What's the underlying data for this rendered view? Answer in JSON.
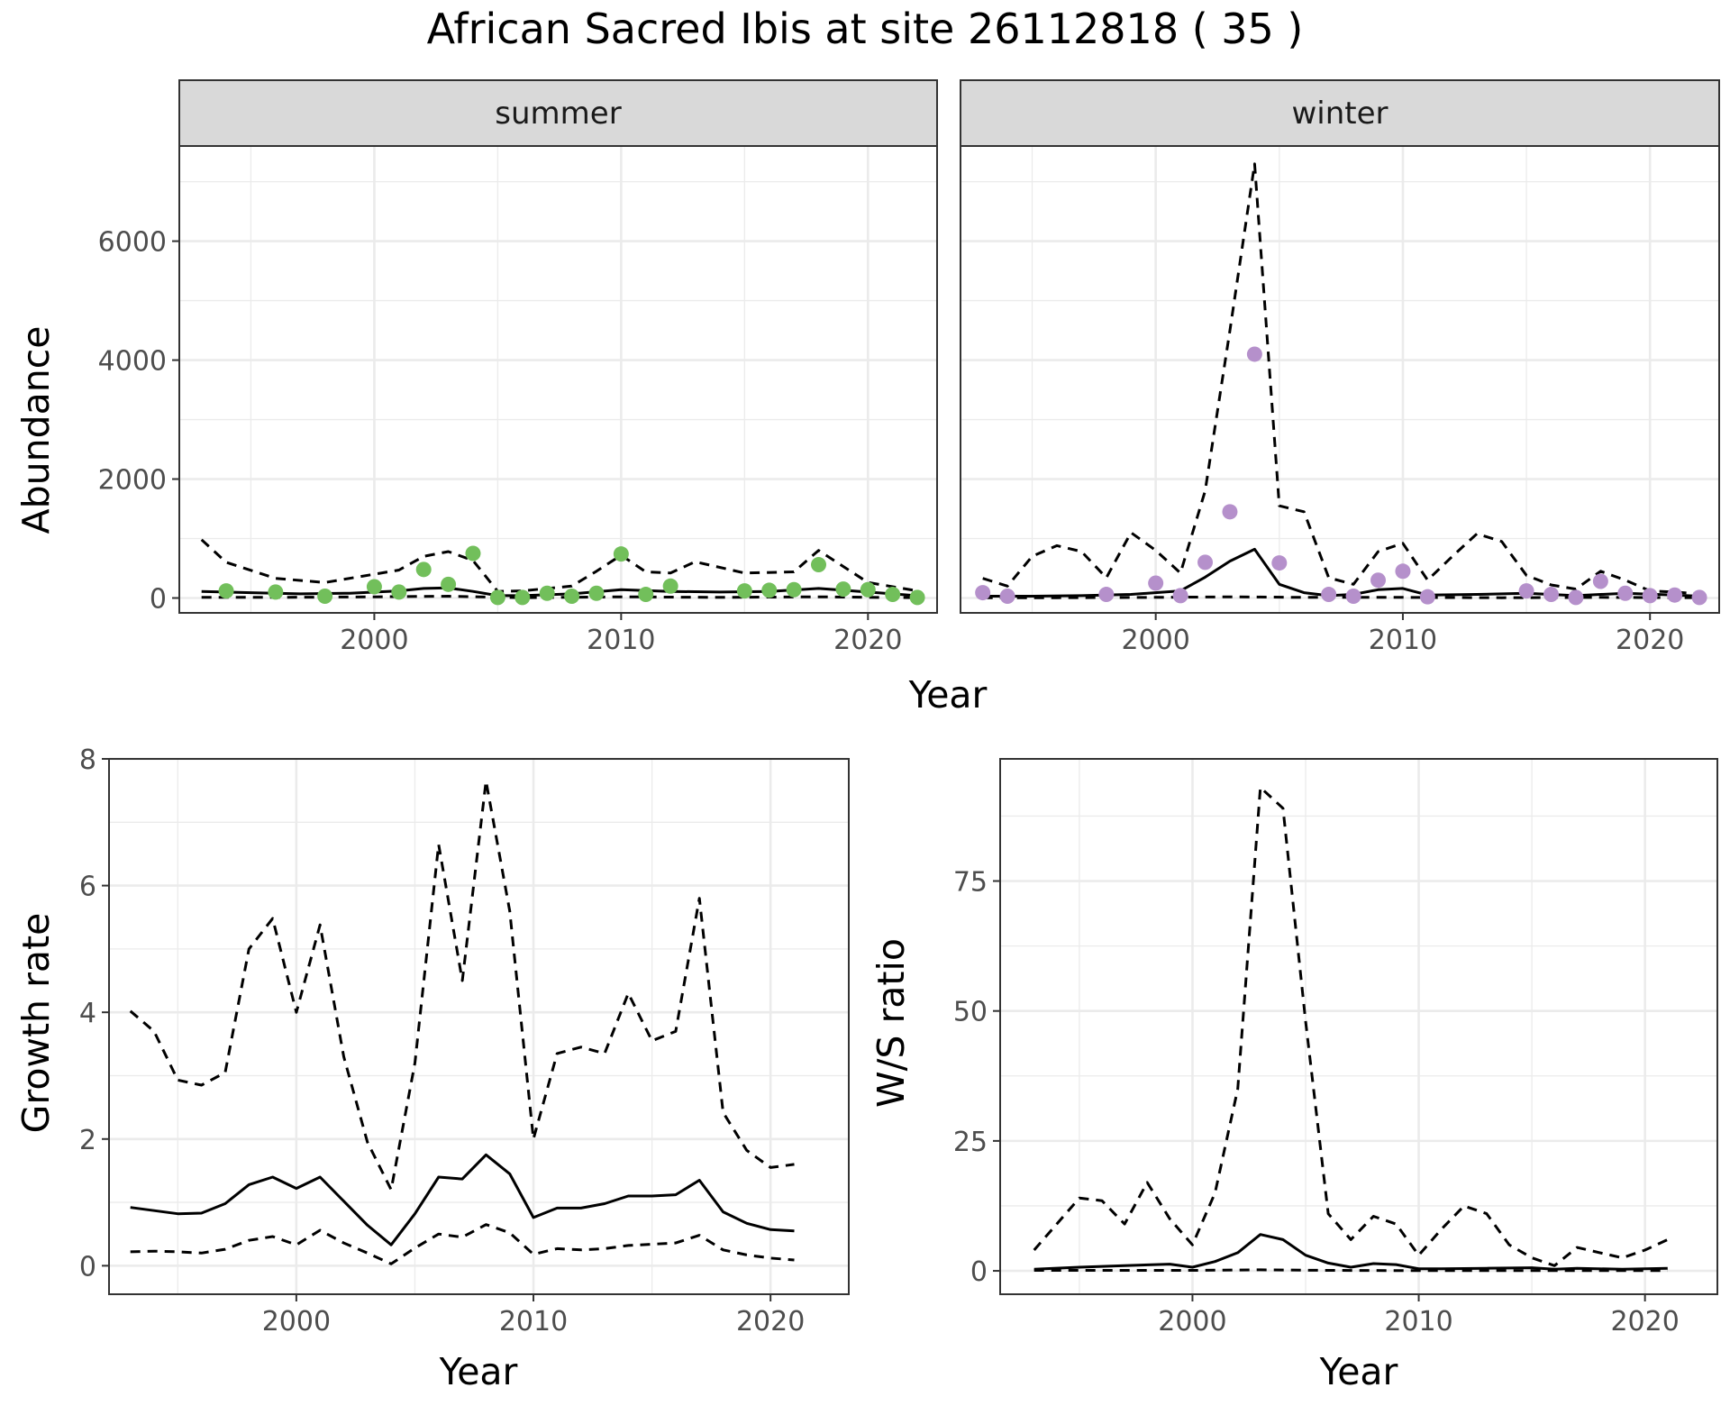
{
  "title": "African Sacred Ibis at site 26112818 ( 35 )",
  "chart_data": [
    {
      "type": "line",
      "facet": "summer",
      "ylabel": "Abundance",
      "xlabel": "Year",
      "xlim": [
        1992.1,
        2022.8
      ],
      "ylim": [
        -250,
        7600
      ],
      "xticks": [
        2000,
        2010,
        2020
      ],
      "yticks": [
        0,
        2000,
        4000,
        6000
      ],
      "grid": true,
      "points_color": "#72bf5b",
      "points": {
        "x": [
          1994,
          1996,
          1998,
          2000,
          2001,
          2002,
          2003,
          2004,
          2005,
          2006,
          2007,
          2008,
          2009,
          2010,
          2011,
          2012,
          2015,
          2016,
          2017,
          2018,
          2019,
          2020,
          2021,
          2022
        ],
        "y": [
          120,
          100,
          30,
          190,
          100,
          480,
          230,
          750,
          10,
          10,
          80,
          30,
          80,
          740,
          60,
          200,
          120,
          130,
          140,
          560,
          150,
          140,
          60,
          10
        ]
      },
      "series": [
        {
          "name": "",
          "style": "solid",
          "x": [
            1993,
            1995,
            1997,
            1999,
            2001,
            2002,
            2003,
            2004,
            2005,
            2006,
            2008,
            2010,
            2012,
            2014,
            2016,
            2018,
            2020,
            2022
          ],
          "y": [
            110,
            90,
            70,
            80,
            120,
            160,
            170,
            110,
            40,
            40,
            70,
            140,
            110,
            100,
            110,
            160,
            100,
            40
          ]
        },
        {
          "name": "",
          "style": "dashed",
          "x": [
            1993,
            1994,
            1996,
            1998,
            2000,
            2001,
            2002,
            2003,
            2004,
            2005,
            2006,
            2008,
            2009,
            2010,
            2011,
            2012,
            2013,
            2015,
            2017,
            2018,
            2020,
            2022
          ],
          "y": [
            980,
            600,
            330,
            260,
            400,
            470,
            700,
            780,
            630,
            110,
            120,
            200,
            450,
            720,
            440,
            420,
            610,
            420,
            440,
            800,
            260,
            120
          ]
        },
        {
          "name": "",
          "style": "dashed",
          "x": [
            1993,
            1996,
            2000,
            2003,
            2006,
            2010,
            2014,
            2018,
            2022
          ],
          "y": [
            10,
            10,
            20,
            30,
            5,
            20,
            10,
            20,
            5
          ]
        }
      ]
    },
    {
      "type": "line",
      "facet": "winter",
      "ylabel": "Abundance",
      "xlabel": "Year",
      "xlim": [
        1992.1,
        2022.8
      ],
      "ylim": [
        -250,
        7600
      ],
      "xticks": [
        2000,
        2010,
        2020
      ],
      "yticks": [
        0,
        2000,
        4000,
        6000
      ],
      "grid": true,
      "points_color": "#b590cb",
      "points": {
        "x": [
          1993,
          1994,
          1998,
          2000,
          2001,
          2002,
          2003,
          2004,
          2005,
          2007,
          2008,
          2009,
          2010,
          2011,
          2015,
          2016,
          2017,
          2018,
          2019,
          2020,
          2021,
          2022
        ],
        "y": [
          90,
          30,
          60,
          250,
          40,
          600,
          1450,
          4100,
          590,
          60,
          30,
          300,
          450,
          20,
          120,
          60,
          10,
          280,
          80,
          40,
          50,
          10
        ]
      },
      "series": [
        {
          "name": "",
          "style": "solid",
          "x": [
            1993,
            1995,
            1997,
            1999,
            2001,
            2002,
            2003,
            2004,
            2005,
            2006,
            2007,
            2008,
            2009,
            2010,
            2011,
            2013,
            2015,
            2017,
            2019,
            2021,
            2022
          ],
          "y": [
            30,
            30,
            40,
            60,
            120,
            350,
            620,
            820,
            230,
            90,
            40,
            60,
            140,
            160,
            50,
            60,
            80,
            40,
            80,
            50,
            30
          ]
        },
        {
          "name": "",
          "style": "dashed",
          "x": [
            1993,
            1994,
            1995,
            1996,
            1997,
            1998,
            1999,
            2000,
            2001,
            2002,
            2003,
            2004,
            2005,
            2006,
            2007,
            2008,
            2009,
            2010,
            2011,
            2012,
            2013,
            2014,
            2015,
            2016,
            2017,
            2018,
            2019,
            2020,
            2021,
            2022
          ],
          "y": [
            330,
            200,
            700,
            880,
            780,
            340,
            1100,
            800,
            420,
            1800,
            4500,
            7300,
            1550,
            1450,
            340,
            230,
            780,
            920,
            300,
            700,
            1080,
            950,
            380,
            220,
            150,
            450,
            300,
            120,
            100,
            70
          ]
        },
        {
          "name": "",
          "style": "dashed",
          "x": [
            1993,
            1996,
            2000,
            2003,
            2006,
            2010,
            2014,
            2018,
            2022
          ],
          "y": [
            5,
            5,
            10,
            20,
            10,
            10,
            5,
            10,
            5
          ]
        }
      ]
    },
    {
      "type": "line",
      "ylabel": "Growth rate",
      "xlabel": "Year",
      "xlim": [
        1992.1,
        2023.3
      ],
      "ylim": [
        -0.45,
        8.0
      ],
      "xticks": [
        2000,
        2010,
        2020
      ],
      "yticks": [
        0,
        2,
        4,
        6,
        8
      ],
      "grid": true,
      "series": [
        {
          "name": "",
          "style": "solid",
          "x": [
            1993,
            1994,
            1995,
            1996,
            1997,
            1998,
            1999,
            2000,
            2001,
            2002,
            2003,
            2004,
            2005,
            2006,
            2007,
            2008,
            2009,
            2010,
            2011,
            2012,
            2013,
            2014,
            2015,
            2016,
            2017,
            2018,
            2019,
            2020,
            2021
          ],
          "y": [
            0.92,
            0.87,
            0.82,
            0.83,
            0.98,
            1.28,
            1.4,
            1.22,
            1.4,
            1.02,
            0.64,
            0.33,
            0.82,
            1.4,
            1.37,
            1.75,
            1.45,
            0.76,
            0.91,
            0.91,
            0.98,
            1.1,
            1.1,
            1.12,
            1.35,
            0.85,
            0.67,
            0.57,
            0.55
          ]
        },
        {
          "name": "",
          "style": "dashed",
          "x": [
            1993,
            1994,
            1995,
            1996,
            1997,
            1998,
            1999,
            2000,
            2001,
            2002,
            2003,
            2004,
            2005,
            2006,
            2007,
            2008,
            2009,
            2010,
            2011,
            2012,
            2013,
            2014,
            2015,
            2016,
            2017,
            2018,
            2019,
            2020,
            2021
          ],
          "y": [
            4.02,
            3.7,
            2.93,
            2.85,
            3.05,
            5.0,
            5.48,
            4.0,
            5.38,
            3.3,
            1.95,
            1.2,
            3.2,
            6.65,
            4.5,
            7.65,
            5.6,
            2.0,
            3.35,
            3.45,
            3.35,
            4.3,
            3.55,
            3.7,
            5.8,
            2.42,
            1.82,
            1.55,
            1.6
          ]
        },
        {
          "name": "",
          "style": "dashed",
          "x": [
            1993,
            1994,
            1995,
            1996,
            1997,
            1998,
            1999,
            2000,
            2001,
            2002,
            2003,
            2004,
            2005,
            2006,
            2007,
            2008,
            2009,
            2010,
            2011,
            2012,
            2013,
            2014,
            2015,
            2016,
            2017,
            2018,
            2019,
            2020,
            2021
          ],
          "y": [
            0.22,
            0.23,
            0.22,
            0.2,
            0.26,
            0.4,
            0.46,
            0.33,
            0.56,
            0.36,
            0.2,
            0.03,
            0.28,
            0.5,
            0.45,
            0.65,
            0.52,
            0.18,
            0.27,
            0.25,
            0.27,
            0.32,
            0.34,
            0.36,
            0.48,
            0.25,
            0.17,
            0.12,
            0.09
          ]
        }
      ]
    },
    {
      "type": "line",
      "ylabel": "W/S ratio",
      "xlabel": "Year",
      "xlim": [
        1991.5,
        2023.2
      ],
      "ylim": [
        -4.5,
        98.5
      ],
      "xticks": [
        2000,
        2010,
        2020
      ],
      "yticks": [
        0,
        25,
        50,
        75
      ],
      "grid": true,
      "series": [
        {
          "name": "",
          "style": "solid",
          "x": [
            1993,
            1995,
            1997,
            1999,
            2000,
            2001,
            2002,
            2003,
            2004,
            2005,
            2006,
            2007,
            2008,
            2009,
            2010,
            2011,
            2013,
            2015,
            2016,
            2017,
            2019,
            2021
          ],
          "y": [
            0.3,
            0.7,
            1.0,
            1.3,
            0.7,
            1.8,
            3.5,
            7.0,
            6.0,
            3.0,
            1.5,
            0.7,
            1.4,
            1.2,
            0.4,
            0.4,
            0.5,
            0.6,
            0.3,
            0.5,
            0.3,
            0.5
          ]
        },
        {
          "name": "",
          "style": "dashed",
          "x": [
            1993,
            1994,
            1995,
            1996,
            1997,
            1998,
            1999,
            2000,
            2001,
            2002,
            2003,
            2004,
            2005,
            2006,
            2007,
            2008,
            2009,
            2010,
            2011,
            2012,
            2013,
            2014,
            2015,
            2016,
            2017,
            2018,
            2019,
            2020,
            2021
          ],
          "y": [
            4.0,
            9.0,
            14.0,
            13.5,
            9.0,
            17.0,
            10.0,
            5.0,
            15.0,
            35.0,
            93.0,
            89.0,
            48.0,
            11.0,
            6.0,
            10.5,
            9.0,
            3.0,
            8.0,
            12.5,
            11.0,
            5.0,
            2.5,
            1.0,
            4.5,
            3.5,
            2.5,
            4.0,
            6.0
          ]
        },
        {
          "name": "",
          "style": "dashed",
          "x": [
            1993,
            1996,
            2000,
            2003,
            2006,
            2010,
            2014,
            2018,
            2021
          ],
          "y": [
            0.1,
            0.1,
            0.1,
            0.2,
            0.1,
            0.05,
            0.05,
            0.05,
            0.05
          ]
        }
      ]
    }
  ]
}
